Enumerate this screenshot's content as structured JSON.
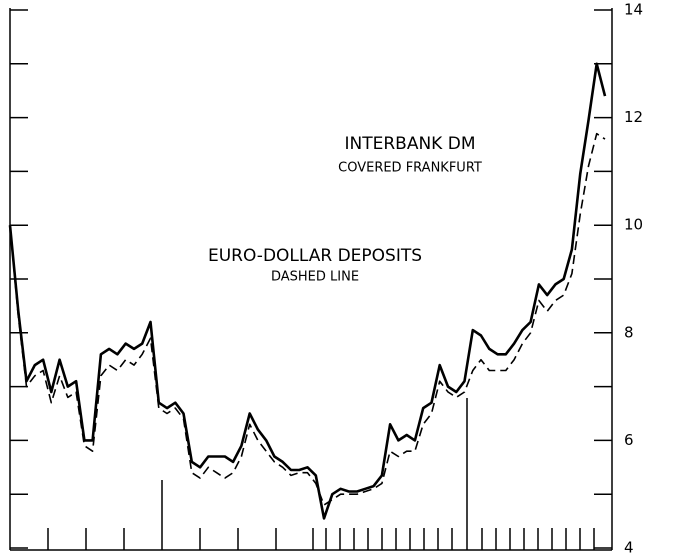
{
  "chart_data": {
    "type": "line",
    "annotations": [
      "INTERBANK DM",
      "COVERED FRANKFURT",
      "EURO-DOLLAR DEPOSITS",
      "DASHED LINE"
    ],
    "series": [
      {
        "color": "#000000",
        "dash": false,
        "values": [
          10.0,
          8.4,
          7.1,
          7.4,
          7.5,
          6.9,
          7.5,
          7.0,
          7.1,
          6.0,
          6.0,
          7.6,
          7.7,
          7.6,
          7.8,
          7.7,
          7.8,
          8.2,
          6.7,
          6.6,
          6.7,
          6.5,
          5.6,
          5.5,
          5.7,
          5.7,
          5.7,
          5.6,
          5.9,
          6.5,
          6.2,
          6.0,
          5.7,
          5.6,
          5.45,
          5.45,
          5.5,
          5.35,
          4.55,
          5.0,
          5.1,
          5.05,
          5.05,
          5.1,
          5.15,
          5.35,
          6.3,
          6.0,
          6.1,
          6.0,
          6.6,
          6.7,
          7.4,
          7.0,
          6.9,
          7.1,
          8.05,
          7.95,
          7.7,
          7.6,
          7.6,
          7.8,
          8.05,
          8.2,
          8.9,
          8.7,
          8.9,
          9.0,
          9.55,
          10.95,
          11.95,
          13.0,
          12.4
        ]
      },
      {
        "color": "#000000",
        "dash": true,
        "values": [
          10.0,
          8.3,
          7.0,
          7.2,
          7.3,
          6.7,
          7.2,
          6.8,
          6.9,
          5.9,
          5.8,
          7.2,
          7.4,
          7.3,
          7.5,
          7.4,
          7.6,
          7.9,
          6.6,
          6.5,
          6.6,
          6.4,
          5.4,
          5.3,
          5.5,
          5.4,
          5.3,
          5.4,
          5.7,
          6.3,
          6.0,
          5.8,
          5.6,
          5.5,
          5.35,
          5.4,
          5.4,
          5.2,
          4.8,
          4.9,
          5.0,
          5.0,
          5.0,
          5.05,
          5.1,
          5.2,
          5.8,
          5.7,
          5.8,
          5.8,
          6.3,
          6.5,
          7.1,
          6.9,
          6.8,
          6.9,
          7.3,
          7.5,
          7.3,
          7.3,
          7.3,
          7.5,
          7.8,
          8.0,
          8.6,
          8.4,
          8.6,
          8.7,
          9.1,
          10.2,
          11.1,
          11.7,
          11.6
        ]
      }
    ],
    "ylim": [
      4,
      14
    ],
    "yticks": [
      4,
      6,
      8,
      10,
      12,
      14
    ],
    "yticks_minor": [
      5,
      7,
      9,
      11,
      13
    ]
  }
}
